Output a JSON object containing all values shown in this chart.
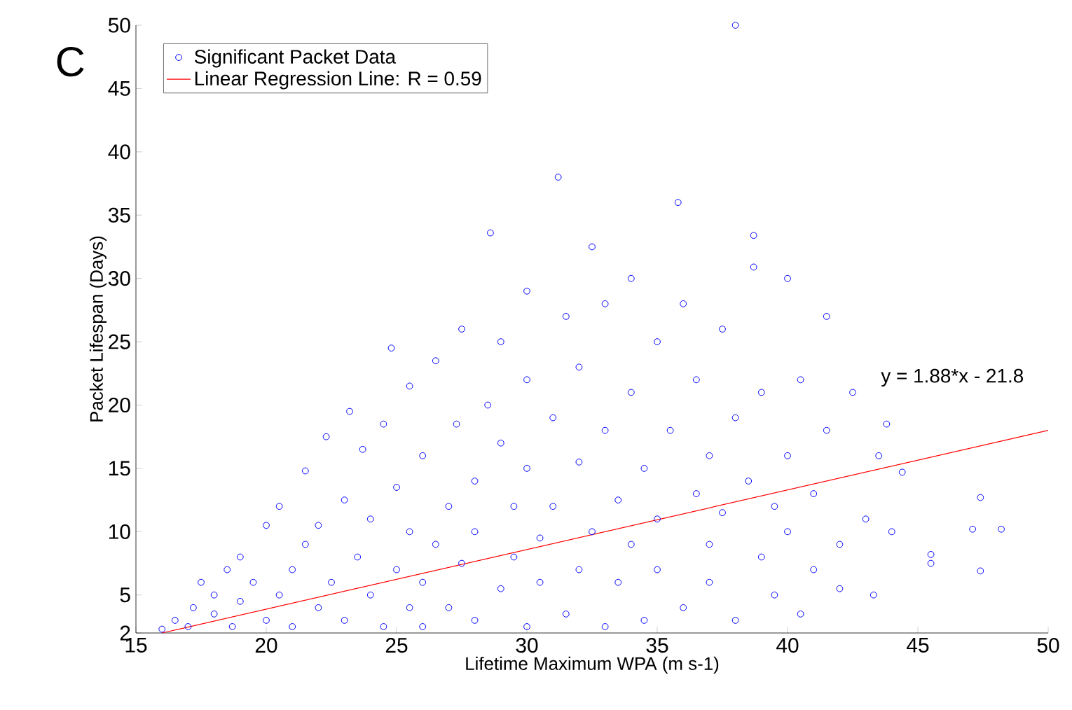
{
  "chart_data": {
    "type": "scatter",
    "xlabel": "Lifetime Maximum WPA (m s-1)",
    "ylabel": "Packet Lifespan (Days)",
    "annotations": [
      "C",
      "y = 1.88*x - 21.8"
    ],
    "xlim": [
      15,
      50
    ],
    "xticks": [
      15,
      20,
      25,
      30,
      35,
      40,
      45,
      50
    ],
    "ylim": [
      2,
      50
    ],
    "yticks": [
      2,
      5,
      10,
      15,
      20,
      25,
      30,
      35,
      40,
      45,
      50
    ],
    "legend": "top left",
    "series": [
      {
        "name": "Significant Packet Data",
        "marker": "circle",
        "color": "#0000ff",
        "x": [
          16,
          16.5,
          17,
          17.2,
          17.5,
          18,
          18,
          18.5,
          18.7,
          19,
          19,
          19.5,
          20,
          20,
          20.5,
          20.5,
          21,
          21,
          21.5,
          21.5,
          22,
          22,
          22.3,
          22.5,
          23,
          23,
          23.2,
          23.5,
          23.7,
          24,
          24,
          24.5,
          24.5,
          24.8,
          25,
          25,
          25.5,
          25.5,
          25.5,
          26,
          26,
          26,
          26.5,
          26.5,
          27,
          27,
          27.3,
          27.5,
          27.5,
          28,
          28,
          28,
          28.5,
          28.6,
          29,
          29,
          29,
          29.5,
          29.5,
          30,
          30,
          30,
          30,
          30.5,
          30.5,
          31,
          31,
          31.2,
          31.5,
          31.5,
          32,
          32,
          32,
          32.5,
          32.5,
          33,
          33,
          33,
          33.5,
          33.5,
          34,
          34,
          34,
          34.5,
          34.5,
          35,
          35,
          35,
          35.5,
          35.8,
          36,
          36,
          36.5,
          36.5,
          37,
          37,
          37,
          37.5,
          37.5,
          38,
          38,
          38,
          38.5,
          38.7,
          38.7,
          39,
          39,
          39.5,
          39.5,
          40,
          40,
          40,
          40.5,
          40.5,
          41,
          41,
          41.5,
          41.5,
          42,
          42,
          42.5,
          43,
          43.3,
          43.5,
          43.8,
          44,
          44.4,
          45.5,
          45.5,
          47.1,
          47.4,
          47.4,
          48.2
        ],
        "values": [
          2.3,
          3,
          2.5,
          4,
          6,
          3.5,
          5,
          7,
          2.5,
          8,
          4.5,
          6,
          10.5,
          3,
          5,
          12,
          7,
          2.5,
          9,
          14.8,
          4,
          10.5,
          17.5,
          6,
          3,
          12.5,
          19.5,
          8,
          16.5,
          5,
          11,
          2.5,
          18.5,
          24.5,
          7,
          13.5,
          4,
          10,
          21.5,
          16,
          6,
          2.5,
          9,
          23.5,
          12,
          4,
          18.5,
          7.5,
          26,
          14,
          3,
          10,
          20,
          33.6,
          5.5,
          17,
          25,
          8,
          12,
          2.5,
          22,
          15,
          29,
          9.5,
          6,
          19,
          12,
          38,
          27,
          3.5,
          7,
          15.5,
          23,
          10,
          32.5,
          2.5,
          18,
          28,
          12.5,
          6,
          21,
          9,
          30,
          15,
          3,
          25,
          11,
          7,
          18,
          36,
          28,
          4,
          13,
          22,
          9,
          16,
          6,
          26,
          11.5,
          50,
          19,
          3,
          14,
          33.4,
          30.9,
          8,
          21,
          12,
          5,
          16,
          30,
          10,
          3.5,
          22,
          7,
          13,
          27,
          18,
          9,
          5.5,
          21,
          11,
          5,
          16,
          18.5,
          10,
          14.7,
          8.2,
          7.5,
          10.2,
          12.7,
          6.9,
          10.2
        ]
      },
      {
        "name": "Linear Regression Line: R = 0.59",
        "type": "line",
        "marker": "none",
        "color": "#ff0000",
        "x": [
          16,
          50
        ],
        "values": [
          2,
          18
        ]
      }
    ]
  }
}
